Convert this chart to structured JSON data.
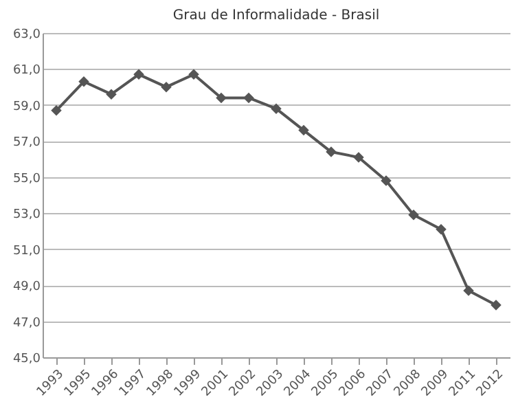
{
  "chart_data": {
    "type": "line",
    "title": "Grau de Informalidade - Brasil",
    "categories": [
      "1993",
      "1995",
      "1996",
      "1997",
      "1998",
      "1999",
      "2001",
      "2002",
      "2003",
      "2004",
      "2005",
      "2006",
      "2007",
      "2008",
      "2009",
      "2011",
      "2012"
    ],
    "series": [
      {
        "color": "#555555",
        "values": [
          58.7,
          60.3,
          59.6,
          60.7,
          60.0,
          60.7,
          59.4,
          59.4,
          58.8,
          57.6,
          56.4,
          56.1,
          54.8,
          52.9,
          52.1,
          48.7,
          47.9
        ]
      }
    ],
    "ylim": [
      45,
      63
    ],
    "yticks": [
      {
        "value": 45,
        "label": "45,0"
      },
      {
        "value": 47,
        "label": "47,0"
      },
      {
        "value": 49,
        "label": "49,0"
      },
      {
        "value": 51,
        "label": "51,0"
      },
      {
        "value": 53,
        "label": "53,0"
      },
      {
        "value": 55,
        "label": "55,0"
      },
      {
        "value": 57,
        "label": "57,0"
      },
      {
        "value": 59,
        "label": "59,0"
      },
      {
        "value": 61,
        "label": "61,0"
      },
      {
        "value": 63,
        "label": "63,0"
      }
    ],
    "grid": "y",
    "marker": "diamond",
    "line_style": "solid",
    "legend": false
  }
}
